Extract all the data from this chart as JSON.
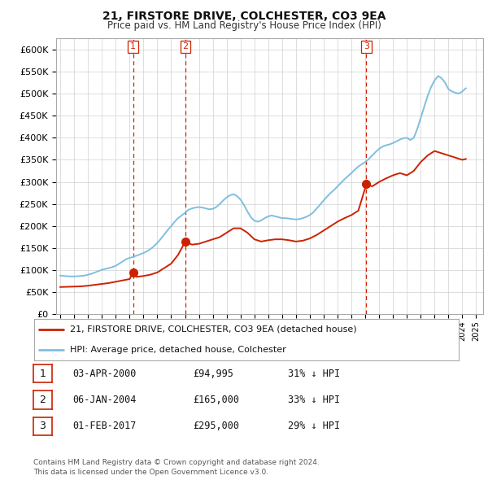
{
  "title": "21, FIRSTORE DRIVE, COLCHESTER, CO3 9EA",
  "subtitle": "Price paid vs. HM Land Registry's House Price Index (HPI)",
  "ylabel_ticks": [
    "£0",
    "£50K",
    "£100K",
    "£150K",
    "£200K",
    "£250K",
    "£300K",
    "£350K",
    "£400K",
    "£450K",
    "£500K",
    "£550K",
    "£600K"
  ],
  "ylim": [
    0,
    625000
  ],
  "xlim_start": 1994.7,
  "xlim_end": 2025.5,
  "hpi_color": "#7fbfdf",
  "price_color": "#cc2200",
  "background_color": "#ffffff",
  "grid_color": "#d0d0d0",
  "sale_points": [
    {
      "year": 2000.25,
      "price": 94995,
      "label": "1"
    },
    {
      "year": 2004.02,
      "price": 165000,
      "label": "2"
    },
    {
      "year": 2017.08,
      "price": 295000,
      "label": "3"
    }
  ],
  "legend_entries": [
    {
      "label": "21, FIRSTORE DRIVE, COLCHESTER, CO3 9EA (detached house)",
      "color": "#cc2200"
    },
    {
      "label": "HPI: Average price, detached house, Colchester",
      "color": "#7fbfdf"
    }
  ],
  "table_rows": [
    {
      "num": "1",
      "date": "03-APR-2000",
      "price": "£94,995",
      "hpi": "31% ↓ HPI"
    },
    {
      "num": "2",
      "date": "06-JAN-2004",
      "price": "£165,000",
      "hpi": "33% ↓ HPI"
    },
    {
      "num": "3",
      "date": "01-FEB-2017",
      "price": "£295,000",
      "hpi": "29% ↓ HPI"
    }
  ],
  "footer": "Contains HM Land Registry data © Crown copyright and database right 2024.\nThis data is licensed under the Open Government Licence v3.0.",
  "hpi_data_years": [
    1995.0,
    1995.25,
    1995.5,
    1995.75,
    1996.0,
    1996.25,
    1996.5,
    1996.75,
    1997.0,
    1997.25,
    1997.5,
    1997.75,
    1998.0,
    1998.25,
    1998.5,
    1998.75,
    1999.0,
    1999.25,
    1999.5,
    1999.75,
    2000.0,
    2000.25,
    2000.5,
    2000.75,
    2001.0,
    2001.25,
    2001.5,
    2001.75,
    2002.0,
    2002.25,
    2002.5,
    2002.75,
    2003.0,
    2003.25,
    2003.5,
    2003.75,
    2004.0,
    2004.25,
    2004.5,
    2004.75,
    2005.0,
    2005.25,
    2005.5,
    2005.75,
    2006.0,
    2006.25,
    2006.5,
    2006.75,
    2007.0,
    2007.25,
    2007.5,
    2007.75,
    2008.0,
    2008.25,
    2008.5,
    2008.75,
    2009.0,
    2009.25,
    2009.5,
    2009.75,
    2010.0,
    2010.25,
    2010.5,
    2010.75,
    2011.0,
    2011.25,
    2011.5,
    2011.75,
    2012.0,
    2012.25,
    2012.5,
    2012.75,
    2013.0,
    2013.25,
    2013.5,
    2013.75,
    2014.0,
    2014.25,
    2014.5,
    2014.75,
    2015.0,
    2015.25,
    2015.5,
    2015.75,
    2016.0,
    2016.25,
    2016.5,
    2016.75,
    2017.0,
    2017.25,
    2017.5,
    2017.75,
    2018.0,
    2018.25,
    2018.5,
    2018.75,
    2019.0,
    2019.25,
    2019.5,
    2019.75,
    2020.0,
    2020.25,
    2020.5,
    2020.75,
    2021.0,
    2021.25,
    2021.5,
    2021.75,
    2022.0,
    2022.25,
    2022.5,
    2022.75,
    2023.0,
    2023.25,
    2023.5,
    2023.75,
    2024.0,
    2024.25
  ],
  "hpi_data_values": [
    88000,
    87000,
    86500,
    86000,
    86000,
    86500,
    87000,
    88000,
    90000,
    92000,
    95000,
    98000,
    101000,
    103000,
    105000,
    107000,
    110000,
    115000,
    120000,
    125000,
    128000,
    130000,
    133000,
    136000,
    139000,
    143000,
    148000,
    154000,
    162000,
    171000,
    181000,
    191000,
    200000,
    210000,
    218000,
    224000,
    230000,
    237000,
    240000,
    242000,
    243000,
    242000,
    240000,
    238000,
    239000,
    243000,
    250000,
    258000,
    265000,
    270000,
    272000,
    268000,
    260000,
    248000,
    233000,
    220000,
    212000,
    210000,
    213000,
    218000,
    222000,
    224000,
    222000,
    220000,
    218000,
    218000,
    217000,
    216000,
    215000,
    216000,
    218000,
    221000,
    225000,
    231000,
    240000,
    249000,
    258000,
    267000,
    275000,
    282000,
    290000,
    298000,
    306000,
    313000,
    320000,
    328000,
    335000,
    340000,
    345000,
    352000,
    360000,
    368000,
    375000,
    380000,
    383000,
    385000,
    388000,
    392000,
    396000,
    399000,
    400000,
    395000,
    400000,
    420000,
    445000,
    470000,
    495000,
    515000,
    530000,
    540000,
    535000,
    525000,
    510000,
    505000,
    502000,
    500000,
    505000,
    512000
  ],
  "price_data_years": [
    1995.0,
    1995.5,
    1996.0,
    1996.5,
    1997.0,
    1997.5,
    1998.0,
    1998.5,
    1999.0,
    1999.5,
    2000.0,
    2000.25,
    2000.5,
    2001.0,
    2001.5,
    2002.0,
    2002.5,
    2003.0,
    2003.5,
    2004.02,
    2004.5,
    2005.0,
    2005.5,
    2006.0,
    2006.5,
    2007.0,
    2007.5,
    2008.0,
    2008.5,
    2009.0,
    2009.5,
    2010.0,
    2010.5,
    2011.0,
    2011.5,
    2012.0,
    2012.5,
    2013.0,
    2013.5,
    2014.0,
    2014.5,
    2015.0,
    2015.5,
    2016.0,
    2016.5,
    2017.08,
    2017.5,
    2018.0,
    2018.5,
    2019.0,
    2019.5,
    2020.0,
    2020.5,
    2021.0,
    2021.5,
    2022.0,
    2022.5,
    2023.0,
    2023.5,
    2024.0,
    2024.25
  ],
  "price_data_values": [
    62000,
    62500,
    63000,
    63500,
    65000,
    67000,
    69000,
    71000,
    74000,
    77000,
    80000,
    94995,
    85000,
    87000,
    90000,
    95000,
    105000,
    115000,
    135000,
    165000,
    158000,
    160000,
    165000,
    170000,
    175000,
    185000,
    195000,
    195000,
    185000,
    170000,
    165000,
    168000,
    170000,
    170000,
    168000,
    165000,
    167000,
    172000,
    180000,
    190000,
    200000,
    210000,
    218000,
    225000,
    235000,
    295000,
    290000,
    300000,
    308000,
    315000,
    320000,
    315000,
    325000,
    345000,
    360000,
    370000,
    365000,
    360000,
    355000,
    350000,
    352000
  ]
}
